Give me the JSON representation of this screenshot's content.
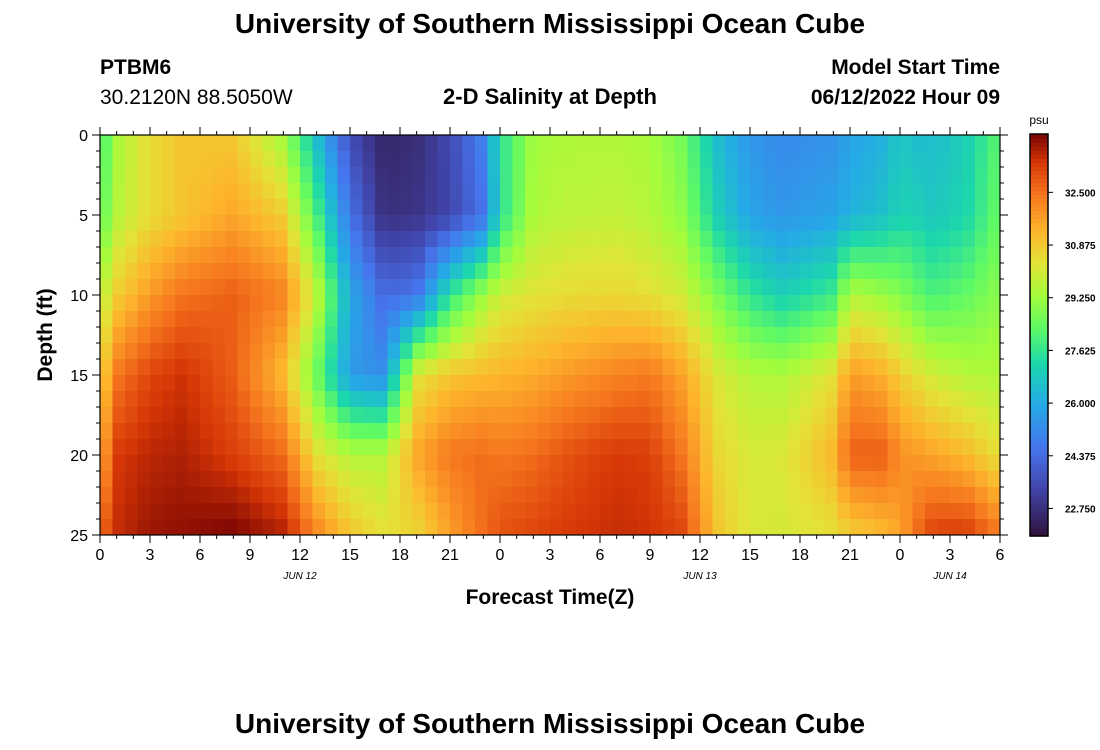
{
  "header": {
    "title": "University of Southern Mississippi Ocean Cube",
    "station_id": "PTBM6",
    "coords": "30.2120N  88.5050W",
    "plot_title": "2-D Salinity at Depth",
    "model_start_label": "Model Start Time",
    "model_start_value": "06/12/2022 Hour 09"
  },
  "footer": {
    "title": "University of Southern Mississippi Ocean Cube"
  },
  "chart_data": {
    "type": "heatmap",
    "title": "2-D Salinity at Depth",
    "xlabel": "Forecast Time(Z)",
    "ylabel": "Depth (ft)",
    "x_range_hours": [
      0,
      54
    ],
    "ylim": [
      0,
      25
    ],
    "y_ticks": [
      "0",
      "5",
      "10",
      "15",
      "20",
      "25"
    ],
    "x_tick_labels": [
      "0",
      "3",
      "6",
      "9",
      "12",
      "15",
      "18",
      "21",
      "0",
      "3",
      "6",
      "9",
      "12",
      "15",
      "18",
      "21",
      "0",
      "3",
      "6"
    ],
    "date_labels": [
      {
        "text": "JUN 12",
        "hour": 12
      },
      {
        "text": "JUN 13",
        "hour": 36
      },
      {
        "text": "JUN 14",
        "hour": 51
      }
    ],
    "colorbar": {
      "unit": "psu",
      "range": [
        21.9,
        34.3
      ],
      "ticks": [
        "22.750",
        "24.375",
        "26.000",
        "27.625",
        "29.250",
        "30.875",
        "32.500"
      ],
      "tick_values": [
        22.75,
        24.375,
        26.0,
        27.625,
        29.25,
        30.875,
        32.5
      ]
    },
    "grid": {
      "depths": [
        0,
        5,
        10,
        15,
        20,
        25
      ],
      "hours": [
        0,
        1,
        3,
        5,
        8,
        11,
        13,
        15,
        17,
        19,
        21,
        23,
        24,
        26,
        28,
        31,
        33,
        35,
        37,
        39,
        41,
        44,
        45,
        47,
        48,
        49,
        50,
        52,
        54
      ],
      "values": [
        [
          27.8,
          29.4,
          30.5,
          31.0,
          30.9,
          29.3,
          26.5,
          23.6,
          22.5,
          22.7,
          23.5,
          25.0,
          27.5,
          29.3,
          29.5,
          29.5,
          29.4,
          28.6,
          26.5,
          25.5,
          25.2,
          25.4,
          25.8,
          26.2,
          26.8,
          26.5,
          26.5,
          27.0,
          28.3
        ],
        [
          28.2,
          29.6,
          30.5,
          31.0,
          31.6,
          30.8,
          28.0,
          24.6,
          22.8,
          22.9,
          23.4,
          24.6,
          27.4,
          29.5,
          29.7,
          29.8,
          29.6,
          29.0,
          27.0,
          25.8,
          25.5,
          25.8,
          26.2,
          26.6,
          27.1,
          27.0,
          26.8,
          27.2,
          28.5
        ],
        [
          29.6,
          30.8,
          31.8,
          32.5,
          32.8,
          32.2,
          29.8,
          26.0,
          24.4,
          24.6,
          27.6,
          29.3,
          30.0,
          30.3,
          30.5,
          30.6,
          30.4,
          30.0,
          28.8,
          27.6,
          27.0,
          27.8,
          29.6,
          29.2,
          28.9,
          28.4,
          28.0,
          28.4,
          29.0
        ],
        [
          30.6,
          32.4,
          33.2,
          33.5,
          32.8,
          31.2,
          28.5,
          25.6,
          25.3,
          30.3,
          31.0,
          31.2,
          31.3,
          31.5,
          31.8,
          32.2,
          32.4,
          31.6,
          30.2,
          29.6,
          29.5,
          30.4,
          31.8,
          31.4,
          30.8,
          30.4,
          30.0,
          29.6,
          29.5
        ],
        [
          31.4,
          33.4,
          33.7,
          33.8,
          33.3,
          32.6,
          30.4,
          29.6,
          29.6,
          31.6,
          32.4,
          32.6,
          32.4,
          32.6,
          33.0,
          33.4,
          33.3,
          32.4,
          30.6,
          30.1,
          30.2,
          31.3,
          32.8,
          32.8,
          32.0,
          31.8,
          31.6,
          31.2,
          30.4
        ],
        [
          32.6,
          33.6,
          34.0,
          34.1,
          34.3,
          33.8,
          32.2,
          31.0,
          30.4,
          30.6,
          31.7,
          32.6,
          33.0,
          33.2,
          33.4,
          33.6,
          33.5,
          33.2,
          31.0,
          30.2,
          30.1,
          30.4,
          30.8,
          31.2,
          31.6,
          32.6,
          33.3,
          33.4,
          32.4
        ]
      ]
    }
  }
}
